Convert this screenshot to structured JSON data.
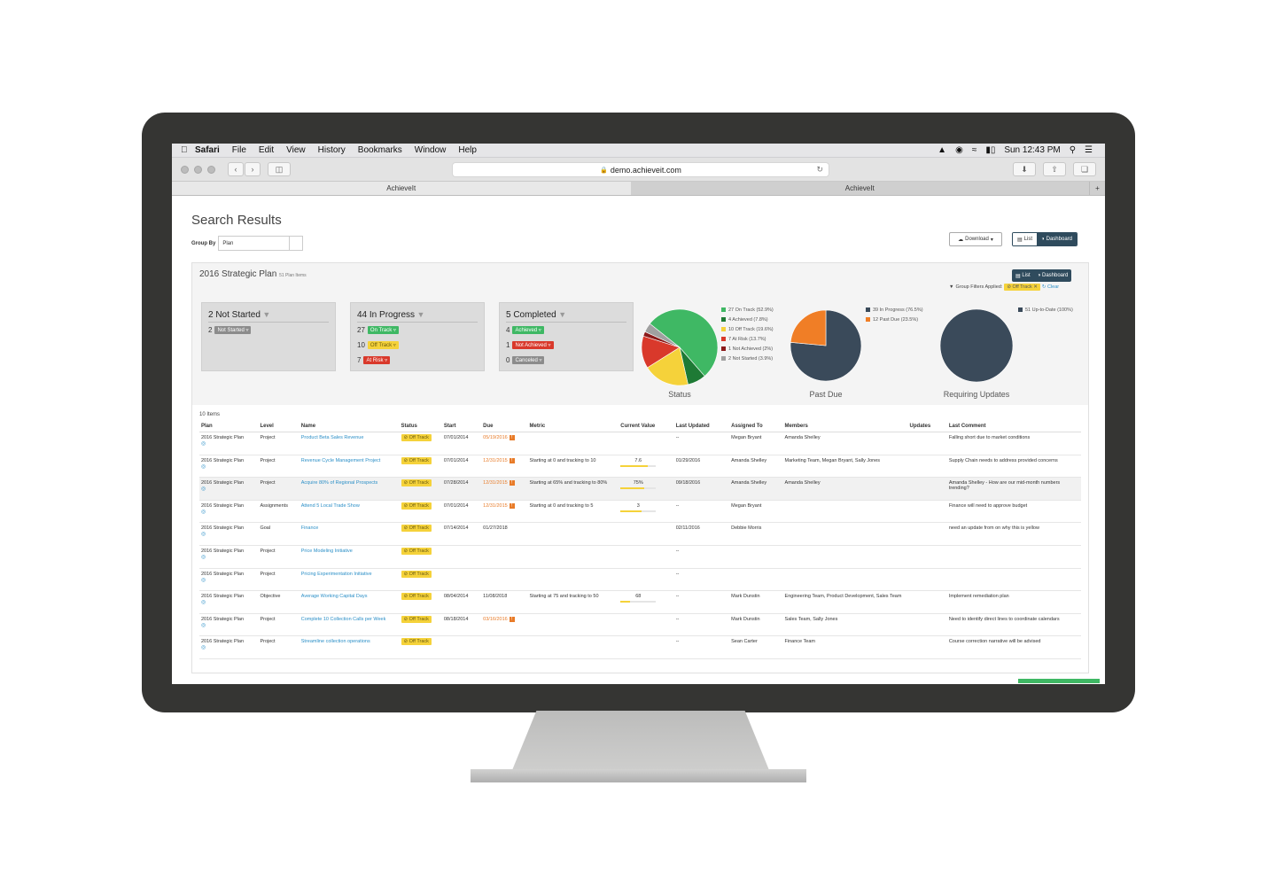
{
  "menubar": {
    "app": "Safari",
    "items": [
      "File",
      "Edit",
      "View",
      "History",
      "Bookmarks",
      "Window",
      "Help"
    ],
    "clock": "Sun 12:43 PM"
  },
  "browser": {
    "url": "demo.achieveit.com",
    "tabs": [
      "AchieveIt",
      "AchieveIt"
    ]
  },
  "page": {
    "title": "Search Results",
    "group_by_label": "Group By",
    "group_by_value": "Plan",
    "download_label": "Download",
    "view_list": "List",
    "view_dashboard": "Dashboard"
  },
  "panel": {
    "plan_title": "2016 Strategic Plan",
    "plan_count": "51 Plan Items",
    "view_list": "List",
    "view_dashboard": "Dashboard",
    "filters_label": "Group Filters Applied:",
    "filter_chip": "Off Track",
    "clear": "Clear"
  },
  "cards": [
    {
      "title": "2 Not Started",
      "rows": [
        {
          "count": "2",
          "badge": "Not Started",
          "color": "#8c8c8c"
        }
      ]
    },
    {
      "title": "44 In Progress",
      "rows": [
        {
          "count": "27",
          "badge": "On Track",
          "color": "#3fb864"
        },
        {
          "count": "10",
          "badge": "Off Track",
          "color": "#f5d23a"
        },
        {
          "count": "7",
          "badge": "At Risk",
          "color": "#d9392b"
        }
      ]
    },
    {
      "title": "5 Completed",
      "rows": [
        {
          "count": "4",
          "badge": "Achieved",
          "color": "#3fb864"
        },
        {
          "count": "1",
          "badge": "Not Achieved",
          "color": "#d9392b"
        },
        {
          "count": "0",
          "badge": "Canceled",
          "color": "#8c8c8c"
        }
      ]
    }
  ],
  "chart_data": [
    {
      "type": "pie",
      "title": "Status",
      "series": [
        {
          "name": "27 On Track (52.9%)",
          "value": 27,
          "color": "#3fb864"
        },
        {
          "name": "4 Achieved (7.8%)",
          "value": 4,
          "color": "#1e7a35"
        },
        {
          "name": "10 Off Track (19.6%)",
          "value": 10,
          "color": "#f5d23a"
        },
        {
          "name": "7 At Risk (13.7%)",
          "value": 7,
          "color": "#d9392b"
        },
        {
          "name": "1 Not Achieved (2%)",
          "value": 1,
          "color": "#8b1a1a"
        },
        {
          "name": "2 Not Started (3.9%)",
          "value": 2,
          "color": "#a0a0a0"
        }
      ]
    },
    {
      "type": "pie",
      "title": "Past Due",
      "series": [
        {
          "name": "39 In Progress (76.5%)",
          "value": 39,
          "color": "#3a4a5a"
        },
        {
          "name": "12 Past Due (23.5%)",
          "value": 12,
          "color": "#f07e26"
        }
      ]
    },
    {
      "type": "pie",
      "title": "Requiring Updates",
      "series": [
        {
          "name": "51 Up-to-Date (100%)",
          "value": 51,
          "color": "#3a4a5a"
        }
      ]
    }
  ],
  "table": {
    "count_label": "10 Items",
    "headers": [
      "Plan",
      "Level",
      "Name",
      "Status",
      "Start",
      "Due",
      "Metric",
      "Current Value",
      "Last Updated",
      "Assigned To",
      "Members",
      "Updates",
      "Last Comment"
    ],
    "rows": [
      {
        "plan": "2016 Strategic Plan",
        "level": "Project",
        "name": "Product Beta Sales Revenue",
        "status": "Off Track",
        "start": "07/01/2014",
        "due": "05/19/2016",
        "due_late": true,
        "metric": "",
        "cv": "",
        "cv_pct": null,
        "updated": "--",
        "assigned": "Megan Bryant",
        "members": "Amanda Shelley",
        "updates": "",
        "comment": "Falling short due to market conditions"
      },
      {
        "plan": "2016 Strategic Plan",
        "level": "Project",
        "name": "Revenue Cycle Management Project",
        "status": "Off Track",
        "start": "07/01/2014",
        "due": "12/31/2015",
        "due_late": true,
        "metric": "Starting at 0 and tracking to 10",
        "cv": "7.6",
        "cv_pct": 0.76,
        "updated": "01/29/2016",
        "assigned": "Amanda Shelley",
        "members": "Marketing Team, Megan Bryant, Sally Jones",
        "updates": "",
        "comment": "Supply Chain needs to address provided concerns"
      },
      {
        "plan": "2016 Strategic Plan",
        "level": "Project",
        "name": "Acquire 80% of Regional Prospects",
        "status": "Off Track",
        "start": "07/28/2014",
        "due": "12/31/2015",
        "due_late": true,
        "metric": "Starting at 65% and tracking to 80%",
        "cv": "75%",
        "cv_pct": 0.67,
        "updated": "09/18/2016",
        "assigned": "Amanda Shelley",
        "members": "Amanda Shelley",
        "updates": "",
        "comment": "Amanda Shelley - How are our mid-month numbers trending?"
      },
      {
        "plan": "2016 Strategic Plan",
        "level": "Assignments",
        "name": "Attend 5 Local Trade Show",
        "status": "Off Track",
        "start": "07/01/2014",
        "due": "12/31/2015",
        "due_late": true,
        "metric": "Starting at 0 and tracking to 5",
        "cv": "3",
        "cv_pct": 0.6,
        "updated": "--",
        "assigned": "Megan Bryant",
        "members": "",
        "updates": "",
        "comment": "Finance will need to approve budget"
      },
      {
        "plan": "2016 Strategic Plan",
        "level": "Goal",
        "name": "Finance",
        "status": "Off Track",
        "start": "07/14/2014",
        "due": "01/27/2018",
        "due_late": false,
        "metric": "",
        "cv": "",
        "cv_pct": null,
        "updated": "02/11/2016",
        "assigned": "Debbie Morris",
        "members": "",
        "updates": "",
        "comment": "need an update from on why this is yellow"
      },
      {
        "plan": "2016 Strategic Plan",
        "level": "Project",
        "name": "Price Modeling Initiative",
        "status": "Off Track",
        "start": "",
        "due": "",
        "due_late": false,
        "metric": "",
        "cv": "",
        "cv_pct": null,
        "updated": "--",
        "assigned": "",
        "members": "",
        "updates": "",
        "comment": ""
      },
      {
        "plan": "2016 Strategic Plan",
        "level": "Project",
        "name": "Pricing Experimentation Initiative",
        "status": "Off Track",
        "start": "",
        "due": "",
        "due_late": false,
        "metric": "",
        "cv": "",
        "cv_pct": null,
        "updated": "--",
        "assigned": "",
        "members": "",
        "updates": "",
        "comment": ""
      },
      {
        "plan": "2016 Strategic Plan",
        "level": "Objective",
        "name": "Average Working Capital Days",
        "status": "Off Track",
        "start": "08/04/2014",
        "due": "11/08/2018",
        "due_late": false,
        "metric": "Starting at 75 and tracking to 50",
        "cv": "68",
        "cv_pct": 0.28,
        "updated": "--",
        "assigned": "Mark Dunstin",
        "members": "Engineering Team, Product Development, Sales Team",
        "updates": "",
        "comment": "Implement remediation plan"
      },
      {
        "plan": "2016 Strategic Plan",
        "level": "Project",
        "name": "Complete 10 Collection Calls per Week",
        "status": "Off Track",
        "start": "08/18/2014",
        "due": "03/16/2016",
        "due_late": true,
        "metric": "",
        "cv": "",
        "cv_pct": null,
        "updated": "--",
        "assigned": "Mark Dunstin",
        "members": "Sales Team, Sally Jones",
        "updates": "",
        "comment": "Need to identify direct lines to coordinate calendars"
      },
      {
        "plan": "2016 Strategic Plan",
        "level": "Project",
        "name": "Streamline collection operations",
        "status": "Off Track",
        "start": "",
        "due": "",
        "due_late": false,
        "metric": "",
        "cv": "",
        "cv_pct": null,
        "updated": "--",
        "assigned": "Sean Carter",
        "members": "Finance Team",
        "updates": "",
        "comment": "Course correction narrative will be advised"
      }
    ]
  }
}
